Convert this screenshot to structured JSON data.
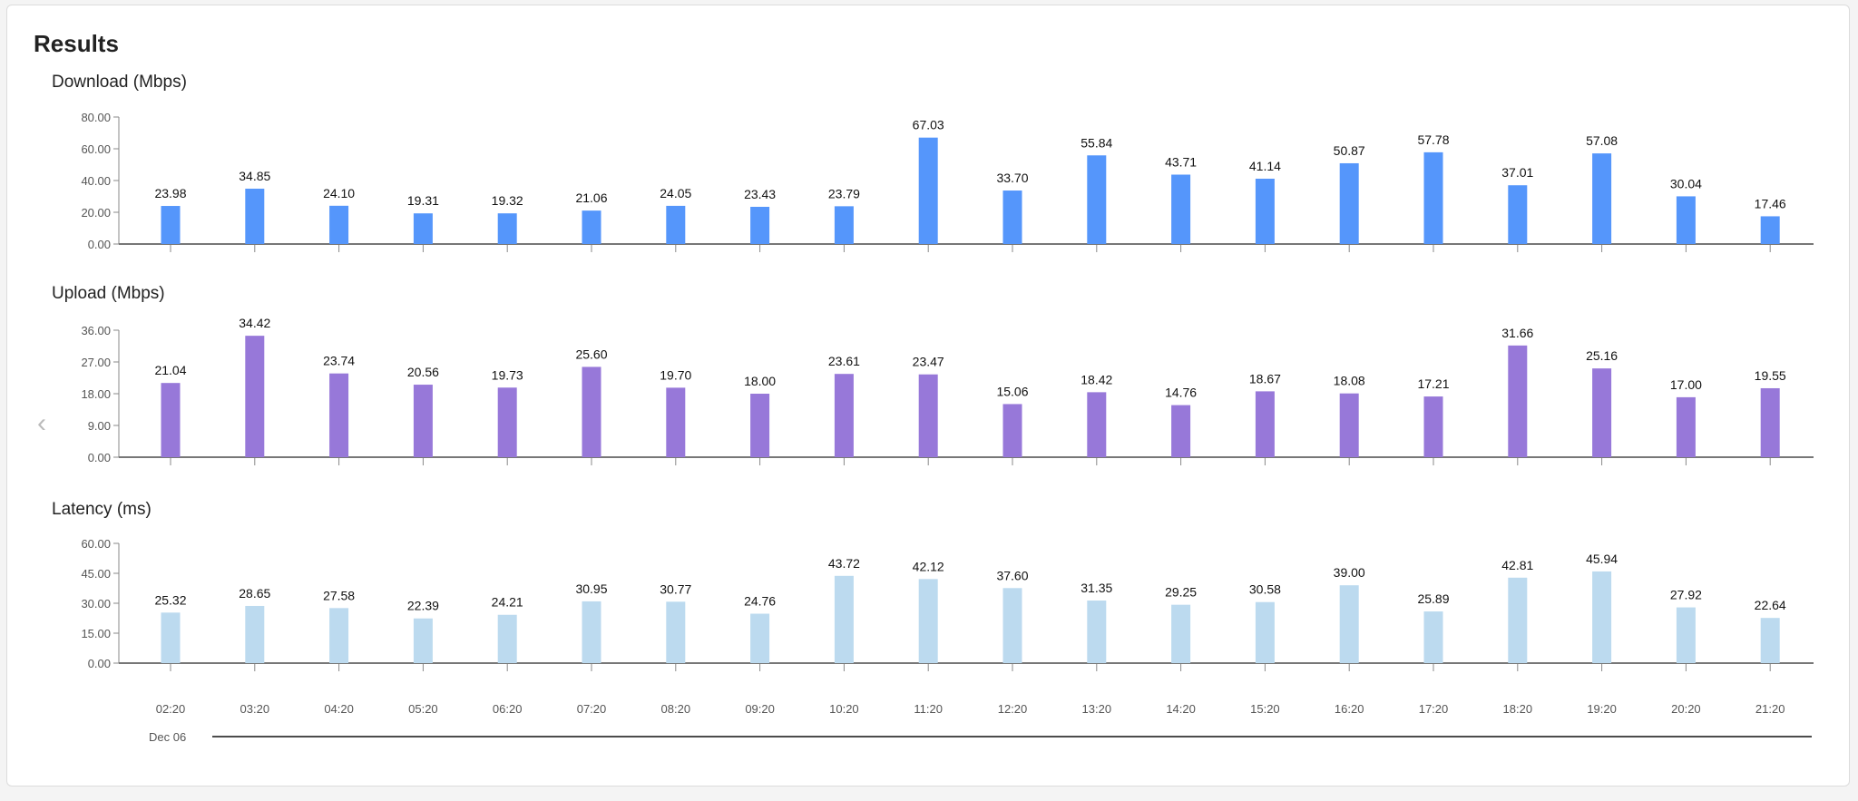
{
  "title": "Results",
  "nav": {
    "prev_icon": "chevron-left-icon"
  },
  "chart_data": [
    {
      "type": "bar",
      "title": "Download (Mbps)",
      "color": "#5596fb",
      "categories": [
        "02:20",
        "03:20",
        "04:20",
        "05:20",
        "06:20",
        "07:20",
        "08:20",
        "09:20",
        "10:20",
        "11:20",
        "12:20",
        "13:20",
        "14:20",
        "15:20",
        "16:20",
        "17:20",
        "18:20",
        "19:20",
        "20:20",
        "21:20"
      ],
      "values": [
        23.98,
        34.85,
        24.1,
        19.31,
        19.32,
        21.06,
        24.05,
        23.43,
        23.79,
        67.03,
        33.7,
        55.84,
        43.71,
        41.14,
        50.87,
        57.78,
        37.01,
        57.08,
        30.04,
        17.46
      ],
      "yticks": [
        "0.00",
        "20.00",
        "40.00",
        "60.00",
        "80.00"
      ],
      "ylim": [
        0,
        80
      ]
    },
    {
      "type": "bar",
      "title": "Upload (Mbps)",
      "color": "#9778d9",
      "categories": [
        "02:20",
        "03:20",
        "04:20",
        "05:20",
        "06:20",
        "07:20",
        "08:20",
        "09:20",
        "10:20",
        "11:20",
        "12:20",
        "13:20",
        "14:20",
        "15:20",
        "16:20",
        "17:20",
        "18:20",
        "19:20",
        "20:20",
        "21:20"
      ],
      "values": [
        21.04,
        34.42,
        23.74,
        20.56,
        19.73,
        25.6,
        19.7,
        18.0,
        23.61,
        23.47,
        15.06,
        18.42,
        14.76,
        18.67,
        18.08,
        17.21,
        31.66,
        25.16,
        17.0,
        19.55
      ],
      "yticks": [
        "0.00",
        "9.00",
        "18.00",
        "27.00",
        "36.00"
      ],
      "ylim": [
        0,
        36
      ]
    },
    {
      "type": "bar",
      "title": "Latency (ms)",
      "color": "#bcdaef",
      "categories": [
        "02:20",
        "03:20",
        "04:20",
        "05:20",
        "06:20",
        "07:20",
        "08:20",
        "09:20",
        "10:20",
        "11:20",
        "12:20",
        "13:20",
        "14:20",
        "15:20",
        "16:20",
        "17:20",
        "18:20",
        "19:20",
        "20:20",
        "21:20"
      ],
      "values": [
        25.32,
        28.65,
        27.58,
        22.39,
        24.21,
        30.95,
        30.77,
        24.76,
        43.72,
        42.12,
        37.6,
        31.35,
        29.25,
        30.58,
        39.0,
        25.89,
        42.81,
        45.94,
        27.92,
        22.64
      ],
      "yticks": [
        "0.00",
        "15.00",
        "30.00",
        "45.00",
        "60.00"
      ],
      "ylim": [
        0,
        60
      ]
    }
  ],
  "x_axis": {
    "tick_labels": [
      "02:20",
      "03:20",
      "04:20",
      "05:20",
      "06:20",
      "07:20",
      "08:20",
      "09:20",
      "10:20",
      "11:20",
      "12:20",
      "13:20",
      "14:20",
      "15:20",
      "16:20",
      "17:20",
      "18:20",
      "19:20",
      "20:20",
      "21:20"
    ],
    "date_label": "Dec 06"
  }
}
